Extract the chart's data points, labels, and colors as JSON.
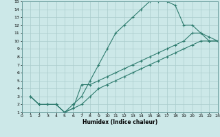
{
  "xlabel": "Humidex (Indice chaleur)",
  "bg_color": "#cce8e8",
  "grid_color": "#aacccc",
  "line_color": "#2e7b6e",
  "line1_x": [
    1,
    2,
    3,
    4,
    5,
    6,
    7,
    8,
    9,
    10,
    11,
    12,
    13,
    14,
    15,
    16,
    17,
    18,
    19,
    20,
    21,
    22,
    23
  ],
  "line1_y": [
    3,
    2,
    2,
    2,
    1,
    2,
    3,
    5,
    7,
    9,
    11,
    12,
    13,
    14,
    15,
    15,
    15,
    14.5,
    12,
    12,
    11,
    10,
    10
  ],
  "line2_x": [
    1,
    2,
    3,
    4,
    5,
    6,
    7,
    8,
    9,
    10,
    11,
    12,
    13,
    14,
    15,
    16,
    17,
    18,
    19,
    20,
    21,
    22,
    23
  ],
  "line2_y": [
    3,
    2,
    2,
    2,
    1,
    1.5,
    4.5,
    4.5,
    5,
    5.5,
    6,
    6.5,
    7,
    7.5,
    8,
    8.5,
    9,
    9.5,
    10,
    11,
    11,
    10.5,
    10
  ],
  "line3_x": [
    1,
    2,
    3,
    4,
    5,
    6,
    7,
    8,
    9,
    10,
    11,
    12,
    13,
    14,
    15,
    16,
    17,
    18,
    19,
    20,
    21,
    22,
    23
  ],
  "line3_y": [
    3,
    2,
    2,
    2,
    1,
    1.5,
    2,
    3,
    4,
    4.5,
    5,
    5.5,
    6,
    6.5,
    7,
    7.5,
    8,
    8.5,
    9,
    9.5,
    10,
    10,
    10
  ],
  "xlim": [
    0,
    23
  ],
  "ylim": [
    1,
    15
  ],
  "xticks": [
    0,
    1,
    2,
    3,
    4,
    5,
    6,
    7,
    8,
    9,
    10,
    11,
    12,
    13,
    14,
    15,
    16,
    17,
    18,
    19,
    20,
    21,
    22,
    23
  ],
  "yticks": [
    1,
    2,
    3,
    4,
    5,
    6,
    7,
    8,
    9,
    10,
    11,
    12,
    13,
    14,
    15
  ]
}
